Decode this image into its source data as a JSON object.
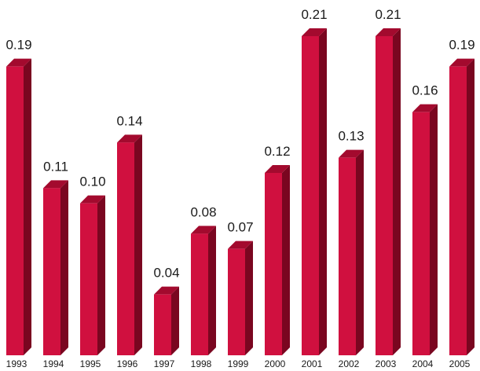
{
  "chart_data": {
    "type": "bar",
    "title": "",
    "xlabel": "",
    "ylabel": "",
    "categories": [
      "1993",
      "1994",
      "1995",
      "1996",
      "1997",
      "1998",
      "1999",
      "2000",
      "2001",
      "2002",
      "2003",
      "2004",
      "2005"
    ],
    "values": [
      0.19,
      0.11,
      0.1,
      0.14,
      0.04,
      0.08,
      0.07,
      0.12,
      0.21,
      0.13,
      0.21,
      0.16,
      0.19
    ],
    "value_labels": [
      "0.19",
      "0.11",
      "0.10",
      "0.14",
      "0.04",
      "0.08",
      "0.07",
      "0.12",
      "0.21",
      "0.13",
      "0.21",
      "0.16",
      "0.19"
    ],
    "ylim": [
      0,
      0.21
    ],
    "grid": false,
    "style": "3d-bars",
    "colors": {
      "front": "#d0103f",
      "top": "#a30a2e",
      "side": "#7a0620"
    }
  }
}
